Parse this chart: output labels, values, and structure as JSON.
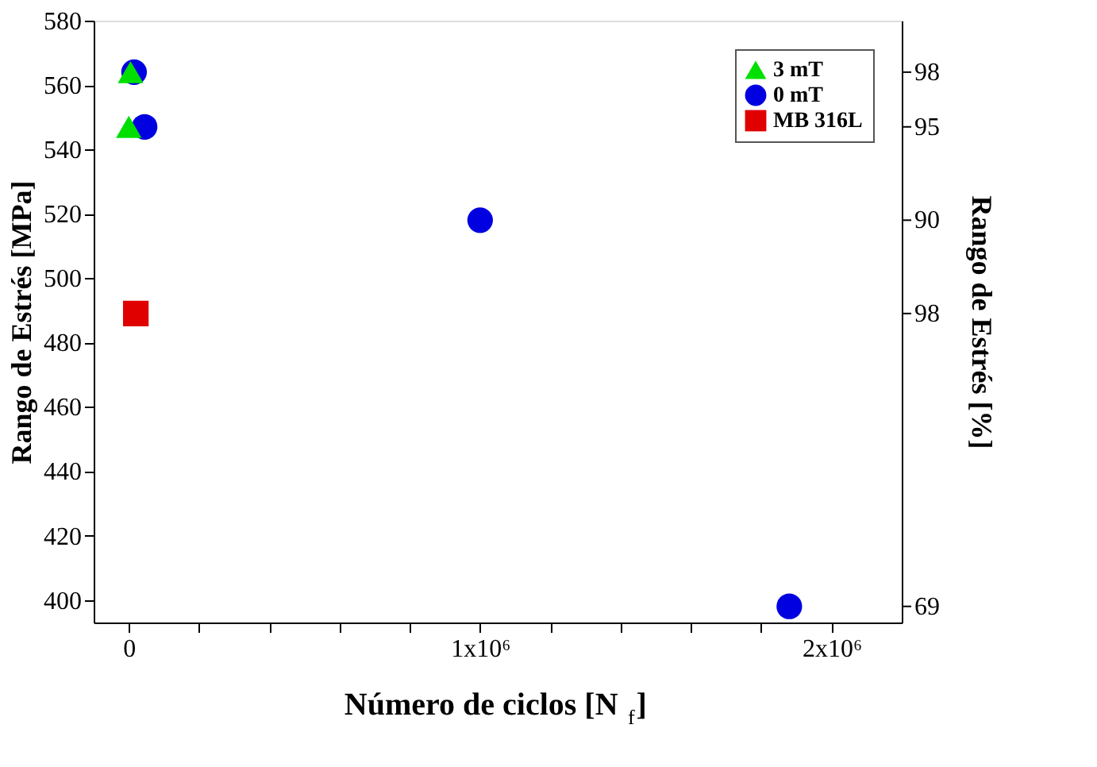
{
  "chart_data": {
    "type": "scatter",
    "xlabel": "Número de ciclos [N$_{f}$]",
    "ylabel": "Rango de Estrés [MPa]",
    "y2label": "Rango de Estrés [%]",
    "xlim": [
      -100000,
      2200000
    ],
    "xticks": [
      {
        "value": 0,
        "label": "0"
      },
      {
        "value": 200000,
        "label": null
      },
      {
        "value": 400000,
        "label": null
      },
      {
        "value": 600000,
        "label": null
      },
      {
        "value": 800000,
        "label": null
      },
      {
        "value": 1000000,
        "label": "1x10⁶"
      },
      {
        "value": 1200000,
        "label": null
      },
      {
        "value": 1400000,
        "label": null
      },
      {
        "value": 1600000,
        "label": null
      },
      {
        "value": 1800000,
        "label": null
      },
      {
        "value": 2000000,
        "label": "2x10⁶"
      }
    ],
    "ylim": [
      393,
      580
    ],
    "yticks": [
      400,
      420,
      440,
      460,
      480,
      500,
      520,
      540,
      560,
      580
    ],
    "annotations": [
      "98",
      "95",
      "90",
      "98",
      "69"
    ],
    "grid": false,
    "legend": "top right",
    "series": [
      {
        "name": "3 mT",
        "color": "#00e000",
        "marker": "triangle",
        "x": [
          5000,
          0
        ],
        "values": [
          564,
          547
        ]
      },
      {
        "name": "0 mT",
        "color": "#0000e0",
        "marker": "circle",
        "x": [
          15000,
          45000,
          1000000,
          1880000
        ],
        "values": [
          564,
          547,
          518,
          398
        ]
      },
      {
        "name": "MB 316L",
        "color": "#e00000",
        "marker": "square",
        "x": [
          20000
        ],
        "values": [
          489
        ]
      }
    ]
  }
}
